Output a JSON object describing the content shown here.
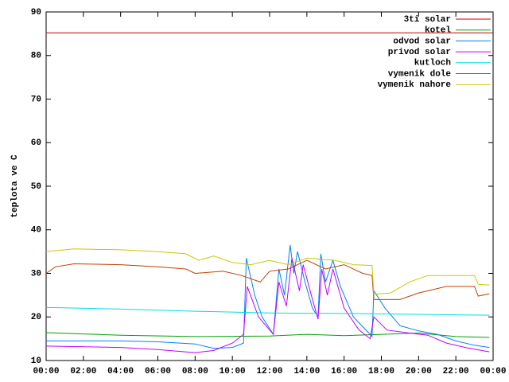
{
  "chart_data": {
    "type": "line",
    "y_label": "teplota ve C",
    "xlim": [
      0,
      24
    ],
    "xticks": [
      {
        "value": 0,
        "label": "00:00"
      },
      {
        "value": 2,
        "label": "02:00"
      },
      {
        "value": 4,
        "label": "04:00"
      },
      {
        "value": 6,
        "label": "06:00"
      },
      {
        "value": 8,
        "label": "08:00"
      },
      {
        "value": 10,
        "label": "10:00"
      },
      {
        "value": 12,
        "label": "12:00"
      },
      {
        "value": 14,
        "label": "14:00"
      },
      {
        "value": 16,
        "label": "16:00"
      },
      {
        "value": 18,
        "label": "18:00"
      },
      {
        "value": 20,
        "label": "20:00"
      },
      {
        "value": 22,
        "label": "22:00"
      },
      {
        "value": 24,
        "label": "00:00"
      }
    ],
    "ylim": [
      10,
      90
    ],
    "yticks": [
      10,
      20,
      30,
      40,
      50,
      60,
      70,
      80,
      90
    ],
    "legend": "top-right",
    "series": [
      {
        "name": "3ti solar",
        "color": "#cc0000",
        "x": [
          0,
          24
        ],
        "values": [
          85.2,
          85.2
        ]
      },
      {
        "name": "kotel",
        "color": "#00a000",
        "x": [
          0,
          4,
          8,
          12,
          14,
          16,
          18,
          20,
          22,
          23.8
        ],
        "values": [
          16.4,
          15.8,
          15.5,
          15.6,
          16,
          15.7,
          16,
          16.3,
          15.5,
          15.3
        ]
      },
      {
        "name": "odvod solar",
        "color": "#0080ff",
        "x": [
          0,
          4,
          6,
          8,
          9,
          10,
          10.6,
          10.75,
          11.2,
          11.6,
          12.2,
          12.5,
          12.8,
          13.1,
          13.3,
          13.5,
          13.9,
          14.3,
          14.6,
          14.75,
          15,
          15.4,
          15.8,
          16.5,
          17.4,
          17.5,
          17.6,
          18.2,
          19,
          20,
          21,
          22,
          23,
          23.8
        ],
        "values": [
          14.5,
          14.5,
          14.3,
          13.8,
          12.8,
          13,
          14,
          33.5,
          25,
          20,
          16,
          31,
          25,
          36.5,
          30,
          35,
          28,
          22,
          20,
          34.5,
          28,
          33,
          27,
          20,
          16,
          15.5,
          26,
          22,
          18,
          16.8,
          16,
          14.5,
          13.5,
          13
        ]
      },
      {
        "name": "privod solar",
        "color": "#c000ff",
        "x": [
          0,
          4,
          6,
          8,
          9,
          10,
          10.6,
          10.8,
          11.4,
          12.2,
          12.5,
          12.9,
          13.2,
          13.6,
          13.8,
          14.3,
          14.6,
          14.8,
          15.1,
          15.4,
          16,
          16.8,
          17.4,
          17.6,
          18.3,
          19.5,
          20.5,
          21.5,
          22.5,
          23.8
        ],
        "values": [
          13.3,
          13,
          12.5,
          11.8,
          12.3,
          14,
          16,
          27,
          20,
          16,
          28,
          22.5,
          33.5,
          26,
          32,
          24,
          19.5,
          31,
          25,
          31,
          22,
          17,
          15,
          20,
          17,
          16.3,
          15.8,
          14,
          13,
          12
        ]
      },
      {
        "name": "kutloch",
        "color": "#00dddd",
        "x": [
          0,
          4,
          8,
          12,
          16,
          20,
          23.8
        ],
        "values": [
          22.2,
          21.8,
          21.3,
          20.9,
          20.8,
          20.6,
          20.4
        ]
      },
      {
        "name": "vymenik dole",
        "color": "#c04000",
        "x": [
          0,
          0.5,
          1.5,
          4,
          6,
          7.5,
          8,
          9.5,
          10.5,
          11.5,
          12,
          13,
          14,
          15,
          16,
          17,
          17.5,
          17.6,
          19,
          20,
          21.5,
          23,
          23.2,
          23.8
        ],
        "values": [
          30,
          31.5,
          32.2,
          32,
          31.5,
          31,
          30,
          30.5,
          29.5,
          28,
          30.5,
          31,
          33,
          31,
          32,
          30,
          29.5,
          24,
          24,
          25.5,
          27,
          27,
          24.8,
          25.3
        ]
      },
      {
        "name": "vymenik nahore",
        "color": "#c8c800",
        "x": [
          0,
          1.5,
          4,
          6,
          7.5,
          8.2,
          9,
          10,
          11,
          12,
          13,
          14,
          15.5,
          16.5,
          17.5,
          17.6,
          18.5,
          19.5,
          20.5,
          23,
          23.2,
          23.8
        ],
        "values": [
          35,
          35.6,
          35.4,
          35,
          34.5,
          33,
          34,
          32.5,
          32,
          33,
          32,
          33.5,
          33,
          32,
          31.8,
          25.2,
          25.5,
          28,
          29.5,
          29.5,
          27.5,
          27.3
        ]
      }
    ]
  }
}
